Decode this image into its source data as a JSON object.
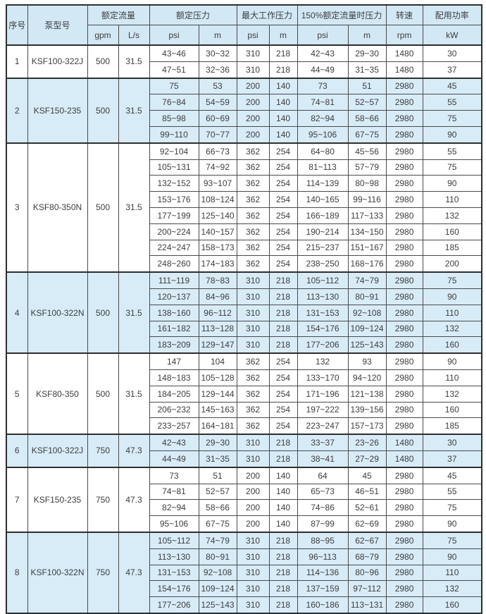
{
  "table": {
    "headers": {
      "serial": "序号",
      "model": "泵型号",
      "rated_flow": "额定流量",
      "rated_pressure": "额定压力",
      "max_working_pressure": "最大工作压力",
      "pressure_at_150_flow": "150%额定流量时压力",
      "speed": "转速",
      "power": "配用功率"
    },
    "units": [
      "gpm",
      "L/s",
      "psi",
      "m",
      "psi",
      "m",
      "psi",
      "m",
      "rpm",
      "kW"
    ],
    "colors": {
      "header_bg": "#d3e8f5",
      "shaded_row_bg": "#d8ecf8",
      "border_dark": "#2e2e2e",
      "border_inner": "#4a4a4a",
      "text": "#3d3d3d"
    }
  },
  "groups": [
    {
      "no": "1",
      "model": "KSF100-322J",
      "gpm": "500",
      "ls": "31.5",
      "shaded": false,
      "rows": [
        [
          "43~46",
          "30~32",
          "310",
          "218",
          "42~43",
          "29~30",
          "1480",
          "30"
        ],
        [
          "47~51",
          "32~36",
          "310",
          "218",
          "44~49",
          "31~35",
          "1480",
          "37"
        ]
      ]
    },
    {
      "no": "2",
      "model": "KSF150-235",
      "gpm": "500",
      "ls": "31.5",
      "shaded": true,
      "rows": [
        [
          "75",
          "53",
          "200",
          "140",
          "73",
          "51",
          "2980",
          "45"
        ],
        [
          "76~84",
          "54~59",
          "200",
          "140",
          "74~81",
          "52~57",
          "2980",
          "55"
        ],
        [
          "85~98",
          "60~69",
          "200",
          "140",
          "82~94",
          "58~66",
          "2980",
          "75"
        ],
        [
          "99~110",
          "70~77",
          "200",
          "140",
          "95~106",
          "67~75",
          "2980",
          "90"
        ]
      ]
    },
    {
      "no": "3",
      "model": "KSF80-350N",
      "gpm": "500",
      "ls": "31.5",
      "shaded": false,
      "rows": [
        [
          "92~104",
          "66~73",
          "362",
          "254",
          "64~80",
          "45~56",
          "2980",
          "55"
        ],
        [
          "105~131",
          "74~92",
          "362",
          "254",
          "81~113",
          "57~79",
          "2980",
          "75"
        ],
        [
          "132~152",
          "93~107",
          "362",
          "254",
          "114~139",
          "80~98",
          "2980",
          "90"
        ],
        [
          "153~176",
          "108~124",
          "362",
          "254",
          "140~165",
          "99~116",
          "2980",
          "110"
        ],
        [
          "177~199",
          "125~140",
          "362",
          "254",
          "166~189",
          "117~133",
          "2980",
          "132"
        ],
        [
          "200~224",
          "140~157",
          "362",
          "254",
          "190~214",
          "134~150",
          "2980",
          "160"
        ],
        [
          "224~247",
          "158~173",
          "362",
          "254",
          "215~237",
          "151~167",
          "2980",
          "185"
        ],
        [
          "248~260",
          "174~183",
          "362",
          "254",
          "238~250",
          "168~176",
          "2980",
          "200"
        ]
      ]
    },
    {
      "no": "4",
      "model": "KSF100-322N",
      "gpm": "500",
      "ls": "31.5",
      "shaded": true,
      "rows": [
        [
          "111~119",
          "78~83",
          "310",
          "218",
          "105~112",
          "74~79",
          "2980",
          "75"
        ],
        [
          "120~137",
          "84~96",
          "310",
          "218",
          "113~130",
          "80~91",
          "2980",
          "90"
        ],
        [
          "138~160",
          "96~112",
          "310",
          "218",
          "131~153",
          "92~108",
          "2980",
          "110"
        ],
        [
          "161~182",
          "113~128",
          "310",
          "218",
          "154~176",
          "109~124",
          "2980",
          "132"
        ],
        [
          "183~209",
          "129~147",
          "310",
          "218",
          "177~206",
          "125~143",
          "2980",
          "160"
        ]
      ]
    },
    {
      "no": "5",
      "model": "KSF80-350",
      "gpm": "500",
      "ls": "31.5",
      "shaded": false,
      "rows": [
        [
          "147",
          "104",
          "362",
          "254",
          "132",
          "93",
          "2980",
          "90"
        ],
        [
          "148~183",
          "105~128",
          "362",
          "254",
          "133~170",
          "94~120",
          "2980",
          "110"
        ],
        [
          "184~205",
          "129~144",
          "362",
          "254",
          "171~196",
          "121~138",
          "2980",
          "132"
        ],
        [
          "206~232",
          "145~163",
          "362",
          "254",
          "197~222",
          "139~156",
          "2980",
          "160"
        ],
        [
          "233~257",
          "164~181",
          "362",
          "254",
          "223~247",
          "157~173",
          "2980",
          "185"
        ]
      ]
    },
    {
      "no": "6",
      "model": "KSF100-322J",
      "gpm": "750",
      "ls": "47.3",
      "shaded": true,
      "rows": [
        [
          "42~43",
          "29~30",
          "310",
          "218",
          "33~37",
          "23~26",
          "1480",
          "30"
        ],
        [
          "44~49",
          "31~35",
          "310",
          "218",
          "38~41",
          "27~29",
          "1480",
          "37"
        ]
      ]
    },
    {
      "no": "7",
      "model": "KSF150-235",
      "gpm": "750",
      "ls": "47.3",
      "shaded": false,
      "rows": [
        [
          "73",
          "51",
          "200",
          "140",
          "64",
          "45",
          "2980",
          "45"
        ],
        [
          "74~81",
          "52~57",
          "200",
          "140",
          "65~73",
          "46~51",
          "2980",
          "55"
        ],
        [
          "82~94",
          "58~66",
          "200",
          "140",
          "74~86",
          "52~61",
          "2980",
          "75"
        ],
        [
          "95~106",
          "67~75",
          "200",
          "140",
          "87~99",
          "62~69",
          "2980",
          "90"
        ]
      ]
    },
    {
      "no": "8",
      "model": "KSF100-322N",
      "gpm": "750",
      "ls": "47.3",
      "shaded": true,
      "rows": [
        [
          "105~112",
          "74~79",
          "310",
          "218",
          "88~95",
          "62~67",
          "2980",
          "75"
        ],
        [
          "113~130",
          "80~91",
          "310",
          "218",
          "96~113",
          "68~79",
          "2980",
          "90"
        ],
        [
          "131~153",
          "92~108",
          "310",
          "218",
          "114~136",
          "80~96",
          "2980",
          "110"
        ],
        [
          "154~176",
          "109~124",
          "310",
          "218",
          "137~159",
          "97~112",
          "2980",
          "132"
        ],
        [
          "177~206",
          "125~143",
          "310",
          "218",
          "160~186",
          "113~131",
          "2980",
          "160"
        ]
      ]
    }
  ]
}
